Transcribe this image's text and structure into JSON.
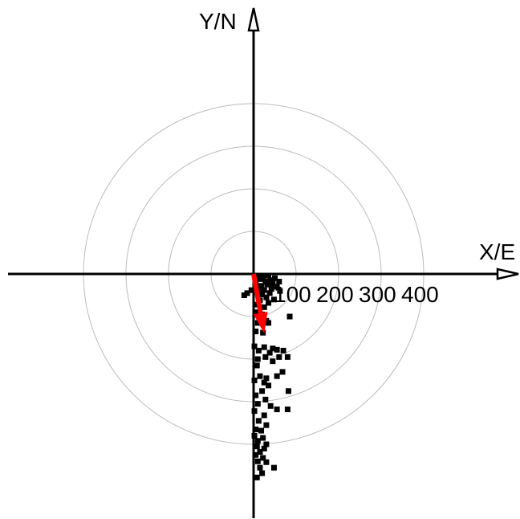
{
  "chart_data": {
    "type": "scatter",
    "title": "",
    "xlabel": "X/E",
    "ylabel": "Y/N",
    "ring_labels": [
      "100",
      "200",
      "300",
      "400"
    ],
    "rings": [
      100,
      200,
      300,
      400
    ],
    "xlim": [
      -575,
      625
    ],
    "ylim": [
      -575,
      625
    ],
    "grid": true,
    "colors": {
      "points": "#000000",
      "ring": "#bbbbbb",
      "axis": "#000000",
      "arrow": "#ff0000"
    },
    "arrow": {
      "from": [
        0,
        0
      ],
      "to": [
        25,
        -140
      ]
    },
    "points": [
      [
        10,
        -5
      ],
      [
        22,
        -8
      ],
      [
        35,
        -4
      ],
      [
        50,
        -10
      ],
      [
        40,
        -15
      ],
      [
        28,
        -18
      ],
      [
        15,
        -12
      ],
      [
        5,
        -20
      ],
      [
        45,
        -22
      ],
      [
        60,
        -18
      ],
      [
        32,
        -25
      ],
      [
        18,
        -28
      ],
      [
        8,
        -30
      ],
      [
        55,
        -30
      ],
      [
        42,
        -35
      ],
      [
        25,
        -38
      ],
      [
        12,
        -40
      ],
      [
        62,
        -40
      ],
      [
        38,
        -45
      ],
      [
        20,
        -48
      ],
      [
        -5,
        -38
      ],
      [
        -15,
        -45
      ],
      [
        -22,
        -50
      ],
      [
        30,
        -55
      ],
      [
        48,
        -60
      ],
      [
        15,
        -62
      ],
      [
        35,
        -68
      ],
      [
        8,
        -72
      ],
      [
        25,
        -78
      ],
      [
        5,
        -90
      ],
      [
        20,
        -95
      ],
      [
        30,
        -110
      ],
      [
        10,
        -115
      ],
      [
        35,
        -115
      ],
      [
        85,
        -100
      ],
      [
        5,
        -135
      ],
      [
        22,
        -138
      ],
      [
        2,
        -170
      ],
      [
        25,
        -172
      ],
      [
        45,
        -175
      ],
      [
        12,
        -180
      ],
      [
        55,
        -178
      ],
      [
        70,
        -180
      ],
      [
        38,
        -185
      ],
      [
        28,
        -195
      ],
      [
        10,
        -200
      ],
      [
        60,
        -195
      ],
      [
        80,
        -195
      ],
      [
        45,
        -205
      ],
      [
        8,
        -215
      ],
      [
        68,
        -230
      ],
      [
        15,
        -240
      ],
      [
        30,
        -245
      ],
      [
        55,
        -240
      ],
      [
        2,
        -250
      ],
      [
        25,
        -255
      ],
      [
        35,
        -262
      ],
      [
        20,
        -275
      ],
      [
        82,
        -275
      ],
      [
        5,
        -285
      ],
      [
        28,
        -295
      ],
      [
        10,
        -305
      ],
      [
        40,
        -310
      ],
      [
        55,
        -318
      ],
      [
        2,
        -322
      ],
      [
        80,
        -318
      ],
      [
        25,
        -332
      ],
      [
        12,
        -345
      ],
      [
        30,
        -355
      ],
      [
        5,
        -365
      ],
      [
        18,
        -368
      ],
      [
        2,
        -380
      ],
      [
        22,
        -385
      ],
      [
        10,
        -392
      ],
      [
        30,
        -400
      ],
      [
        8,
        -405
      ],
      [
        25,
        -410
      ],
      [
        15,
        -418
      ],
      [
        5,
        -425
      ],
      [
        22,
        -432
      ],
      [
        10,
        -440
      ],
      [
        30,
        -442
      ],
      [
        15,
        -455
      ],
      [
        48,
        -455
      ],
      [
        20,
        -468
      ],
      [
        8,
        -478
      ]
    ]
  }
}
